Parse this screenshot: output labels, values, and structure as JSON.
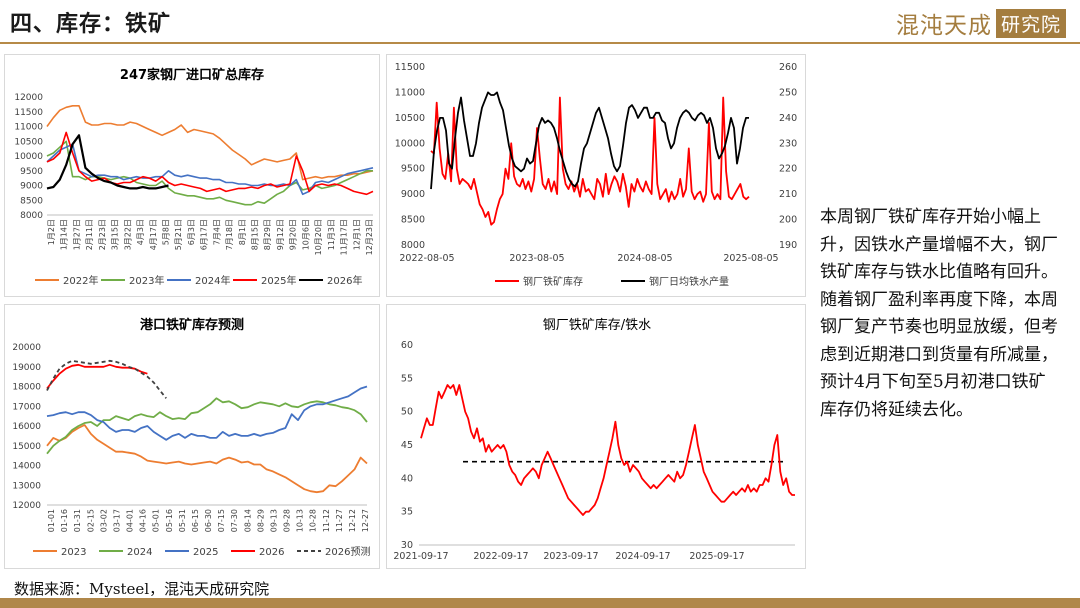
{
  "page_title": "四、库存：铁矿",
  "brand": {
    "logo_text": "混沌天成",
    "logo_box": "研究院",
    "color": "#a47d3f"
  },
  "side_text": "本周钢厂铁矿库存开始小幅上升，因铁水产量增幅不大，钢厂铁矿库存与铁水比值略有回升。\n随着钢厂盈利率再度下降，本周钢厂复产节奏也明显放缓，但考虑到近期港口到货量有所减量，预计4月下旬至5月初港口铁矿库存仍将延续去化。",
  "source": "数据来源：Mysteel，混沌天成研究院",
  "chart_data": [
    {
      "type": "line",
      "title": "247家钢厂进口矿总库存",
      "x_ticks": [
        "1月2日",
        "1月14日",
        "1月27日",
        "2月11日",
        "2月23日",
        "3月15日",
        "3月22日",
        "4月3日",
        "4月17日",
        "5月8日",
        "5月21日",
        "6月3日",
        "6月17日",
        "7月4日",
        "7月18日",
        "8月1日",
        "8月15日",
        "8月29日",
        "9月12日",
        "9月20日",
        "10月6日",
        "10月20日",
        "11月3日",
        "11月17日",
        "12月1日",
        "12月23日"
      ],
      "ylim": [
        8000,
        12000
      ],
      "y_ticks": [
        8000,
        8500,
        9000,
        9500,
        10000,
        10500,
        11000,
        11500,
        12000
      ],
      "x_count": 52,
      "legend_position": "bottom",
      "series": [
        {
          "name": "2022年",
          "color": "#ed7d31",
          "values": [
            11000,
            11300,
            11550,
            11650,
            11700,
            11700,
            11150,
            11050,
            11050,
            11100,
            11100,
            11050,
            11050,
            11150,
            11100,
            11000,
            10900,
            10800,
            10700,
            10800,
            10900,
            11050,
            10800,
            10900,
            10850,
            10800,
            10750,
            10600,
            10400,
            10200,
            10050,
            9900,
            9700,
            9800,
            9900,
            9850,
            9800,
            9850,
            9900,
            10100,
            9200,
            9250,
            9300,
            9250,
            9300,
            9300,
            9350,
            9350,
            9400,
            9400,
            9450,
            9500
          ]
        },
        {
          "name": "2023年",
          "color": "#70ad47",
          "values": [
            10000,
            10100,
            10300,
            10500,
            9300,
            9300,
            9200,
            9300,
            9300,
            9250,
            9200,
            9250,
            9300,
            9250,
            9100,
            9050,
            9000,
            9000,
            9150,
            8900,
            8750,
            8700,
            8650,
            8650,
            8600,
            8550,
            8550,
            8600,
            8500,
            8450,
            8400,
            8350,
            8350,
            8450,
            8400,
            8550,
            8700,
            8800,
            9000,
            9100,
            8850,
            8900,
            9000,
            8900,
            8950,
            9000,
            9100,
            9200,
            9300,
            9400,
            9500,
            9500
          ]
        },
        {
          "name": "2024年",
          "color": "#4472c4",
          "values": [
            9800,
            10000,
            10200,
            10300,
            10400,
            9500,
            9400,
            9300,
            9350,
            9350,
            9300,
            9300,
            9200,
            9250,
            9300,
            9250,
            9250,
            9300,
            9300,
            9500,
            9350,
            9300,
            9350,
            9300,
            9250,
            9250,
            9200,
            9200,
            9100,
            9100,
            9050,
            9050,
            9000,
            9000,
            9050,
            9000,
            9000,
            9050,
            9000,
            9200,
            8700,
            8800,
            9100,
            9150,
            9100,
            9200,
            9300,
            9400,
            9450,
            9500,
            9550,
            9600
          ]
        },
        {
          "name": "2025年",
          "color": "#ff0000",
          "values": [
            9800,
            9900,
            10100,
            10800,
            10100,
            9500,
            9300,
            9150,
            9200,
            9250,
            9100,
            9050,
            9100,
            9100,
            9200,
            9300,
            9250,
            9150,
            9300,
            9100,
            9000,
            9050,
            9000,
            8950,
            8900,
            8800,
            8850,
            8900,
            8800,
            8850,
            8900,
            8900,
            8950,
            8900,
            9000,
            9050,
            8950,
            9000,
            9050,
            10000,
            9500,
            8800,
            9000,
            9050,
            9000,
            9050,
            9000,
            8900,
            8800,
            8750,
            8700,
            8800
          ]
        },
        {
          "name": "2026年",
          "color": "#000000",
          "values": [
            8900,
            8950,
            9200,
            9700,
            10400,
            10700,
            9600,
            9400,
            9250,
            9150,
            9100,
            9000,
            8950,
            8900,
            8900,
            8950,
            8900,
            8900,
            8950,
            9000
          ]
        }
      ]
    },
    {
      "type": "line",
      "title": "",
      "x_ticks": [
        "2022-08-05",
        "2023-08-05",
        "2024-08-05",
        "2025-08-05"
      ],
      "y_left": {
        "ylim": [
          8000,
          11500
        ],
        "ticks": [
          8000,
          8500,
          9000,
          9500,
          10000,
          10500,
          11000,
          11500
        ]
      },
      "y_right": {
        "ylim": [
          190,
          260
        ],
        "ticks": [
          190,
          200,
          210,
          220,
          230,
          240,
          250,
          260
        ]
      },
      "legend_position": "bottom",
      "series": [
        {
          "name": "钢厂铁矿库存",
          "axis": "left",
          "color": "#ff0000",
          "values": [
            9850,
            9800,
            10800,
            9900,
            9400,
            9300,
            9800,
            9250,
            10700,
            9500,
            9200,
            9300,
            9250,
            9200,
            9100,
            9300,
            9050,
            8800,
            8700,
            8550,
            8650,
            8400,
            8450,
            8700,
            8900,
            9000,
            9500,
            9300,
            10000,
            9350,
            9200,
            9150,
            9300,
            9100,
            9250,
            9050,
            9300,
            10300,
            9700,
            9200,
            9100,
            9300,
            9050,
            9250,
            9000,
            10900,
            9500,
            9200,
            9100,
            9250,
            9050,
            9200,
            8950,
            9300,
            9050,
            9100,
            9000,
            8900,
            9300,
            9200,
            8950,
            9400,
            9000,
            9200,
            9350,
            9250,
            9050,
            9400,
            9150,
            8750,
            9200,
            9050,
            9300,
            9150,
            9050,
            9250,
            9100,
            9000,
            10500,
            9200,
            8900,
            9000,
            9100,
            8850,
            9050,
            8900,
            9000,
            9300,
            8950,
            9100,
            9900,
            9050,
            8900,
            9000,
            9050,
            8850,
            9000,
            10400,
            9050,
            8900,
            9000,
            8900,
            10900,
            9450,
            8950,
            8900,
            9000,
            9100,
            9200,
            8950,
            8900,
            8950
          ]
        },
        {
          "name": "钢厂日均铁水产量",
          "axis": "right",
          "color": "#000000",
          "values": [
            212,
            227,
            235,
            240,
            240,
            235,
            222,
            220,
            232,
            242,
            248,
            239,
            232,
            225,
            225,
            230,
            238,
            244,
            247,
            250,
            249,
            249,
            250,
            246,
            243,
            236,
            229,
            224,
            221,
            220,
            219,
            220,
            224,
            222,
            223,
            230,
            237,
            240,
            238,
            239,
            238,
            236,
            232,
            227,
            223,
            219,
            216,
            214,
            213,
            215,
            222,
            228,
            230,
            234,
            238,
            242,
            244,
            240,
            236,
            232,
            226,
            221,
            219,
            221,
            229,
            238,
            244,
            245,
            243,
            240,
            242,
            244,
            244,
            240,
            240,
            242,
            242,
            239,
            238,
            232,
            228,
            230,
            236,
            240,
            242,
            243,
            242,
            240,
            239,
            241,
            242,
            241,
            238,
            240,
            236,
            228,
            224,
            226,
            229,
            234,
            240,
            236,
            222,
            228,
            236,
            240,
            240
          ]
        }
      ]
    },
    {
      "type": "line",
      "title": "港口铁矿库存预测",
      "x_ticks": [
        "01-01",
        "01-16",
        "01-31",
        "02-15",
        "03-02",
        "03-17",
        "04-01",
        "04-16",
        "05-01",
        "05-16",
        "05-31",
        "06-15",
        "06-30",
        "07-15",
        "07-30",
        "08-14",
        "08-29",
        "09-13",
        "09-28",
        "10-13",
        "10-28",
        "11-12",
        "11-27",
        "12-12",
        "12-27"
      ],
      "ylim": [
        12000,
        20000
      ],
      "y_ticks": [
        12000,
        13000,
        14000,
        15000,
        16000,
        17000,
        18000,
        19000,
        20000
      ],
      "x_count": 52,
      "legend_position": "bottom",
      "series": [
        {
          "name": "2023",
          "color": "#ed7d31",
          "values": [
            15000,
            15400,
            15250,
            15400,
            15700,
            15900,
            16050,
            15600,
            15300,
            15100,
            14900,
            14700,
            14700,
            14650,
            14600,
            14450,
            14250,
            14200,
            14150,
            14100,
            14150,
            14200,
            14100,
            14050,
            14100,
            14150,
            14200,
            14100,
            14300,
            14400,
            14300,
            14150,
            14200,
            14050,
            14050,
            13800,
            13700,
            13550,
            13400,
            13200,
            13000,
            12800,
            12700,
            12650,
            12700,
            13000,
            12950,
            13200,
            13500,
            13800,
            14400,
            14100
          ]
        },
        {
          "name": "2024",
          "color": "#70ad47",
          "values": [
            14600,
            15000,
            15250,
            15450,
            15800,
            16000,
            16150,
            16200,
            16000,
            16300,
            16300,
            16500,
            16400,
            16300,
            16500,
            16600,
            16500,
            16450,
            16700,
            16500,
            16350,
            16400,
            16350,
            16650,
            16700,
            16900,
            17100,
            17400,
            17200,
            17250,
            17100,
            16900,
            16950,
            17100,
            17200,
            17150,
            17100,
            17000,
            17150,
            17000,
            16950,
            17100,
            17200,
            17250,
            17200,
            17100,
            17050,
            16950,
            16900,
            16800,
            16600,
            16200
          ]
        },
        {
          "name": "2025",
          "color": "#4472c4",
          "values": [
            16500,
            16550,
            16650,
            16700,
            16600,
            16700,
            16700,
            16550,
            16300,
            16200,
            15900,
            15700,
            15800,
            15800,
            15700,
            15900,
            16000,
            15700,
            15500,
            15300,
            15500,
            15600,
            15400,
            15600,
            15500,
            15500,
            15400,
            15400,
            15700,
            15500,
            15600,
            15500,
            15500,
            15600,
            15500,
            15600,
            15650,
            15800,
            15900,
            16600,
            16300,
            16800,
            17000,
            17100,
            17100,
            17200,
            17300,
            17400,
            17500,
            17700,
            17900,
            18000
          ]
        },
        {
          "name": "2026",
          "color": "#ff0000",
          "values": [
            17900,
            18300,
            18650,
            18900,
            19050,
            19100,
            19000,
            19000,
            19000,
            19000,
            19100,
            19000,
            18950,
            18950,
            18900,
            18750,
            18650
          ]
        },
        {
          "name": "2026预测",
          "color": "#404040",
          "dash": true,
          "values": [
            17800,
            18400,
            18900,
            19150,
            19300,
            19250,
            19200,
            19150,
            19200,
            19250,
            19300,
            19250,
            19150,
            19000,
            18900,
            18700,
            18500,
            18200,
            17800,
            17400
          ]
        }
      ]
    },
    {
      "type": "line",
      "title": "钢厂铁矿库存/铁水",
      "x_ticks": [
        "2021-09-17",
        "2022-09-17",
        "2023-09-17",
        "2024-09-17",
        "2025-09-17"
      ],
      "ylim": [
        30,
        60
      ],
      "y_ticks": [
        30,
        35,
        40,
        45,
        50,
        55,
        60
      ],
      "reference_line": 42.5,
      "series": [
        {
          "name": "",
          "color": "#ff0000",
          "values": [
            46,
            47.5,
            49,
            48,
            48,
            50.5,
            53,
            52,
            53,
            54,
            53.5,
            54,
            52.5,
            54,
            52,
            50,
            49,
            47,
            46,
            47.5,
            45.5,
            46,
            44,
            45,
            44,
            44.5,
            45,
            44.5,
            45,
            44,
            42,
            41,
            40.5,
            39.5,
            39,
            40,
            40.5,
            41,
            41.5,
            41,
            40,
            42,
            43,
            44,
            43,
            42,
            41,
            40,
            39,
            38,
            37,
            36.5,
            36,
            35.5,
            35,
            34.5,
            35,
            35,
            35.5,
            36,
            37,
            38.5,
            40,
            42,
            44,
            46,
            48.5,
            45,
            43,
            42,
            42.5,
            41,
            42,
            41.5,
            41,
            40,
            39.5,
            39,
            38.5,
            39,
            38.5,
            39,
            39.5,
            40,
            40.5,
            40,
            39.5,
            41,
            40,
            40.5,
            42,
            44,
            46,
            48,
            45,
            43,
            41,
            40,
            39,
            38,
            37.5,
            37,
            36.5,
            36.5,
            37,
            37.5,
            38,
            37.5,
            38,
            38.5,
            38,
            39,
            38,
            38.5,
            38,
            39,
            39,
            40,
            39.5,
            42,
            45,
            46.5,
            41,
            39,
            40,
            38,
            37.5,
            37.5
          ]
        }
      ]
    }
  ]
}
